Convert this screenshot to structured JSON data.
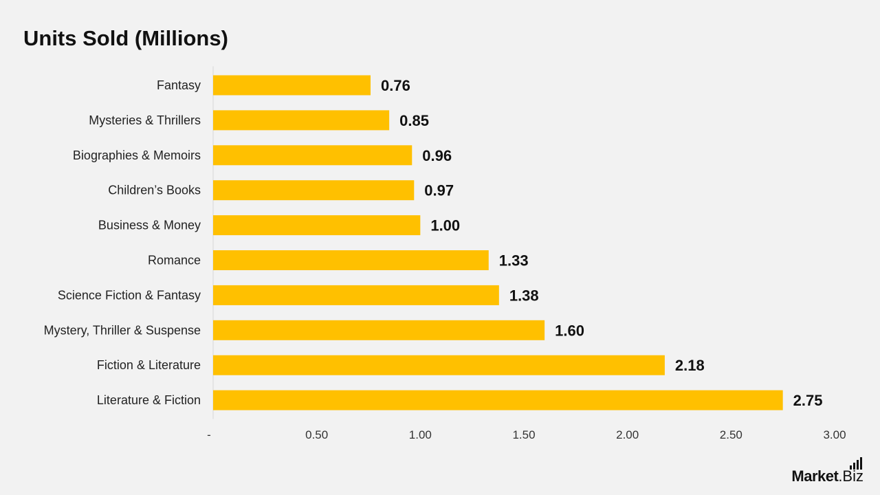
{
  "chart_data": {
    "type": "bar",
    "orientation": "horizontal",
    "title": "Units Sold (Millions)",
    "categories": [
      "Fantasy",
      "Mysteries & Thrillers",
      "Biographies & Memoirs",
      "Children’s Books",
      "Business & Money",
      "Romance",
      "Science Fiction & Fantasy",
      "Mystery, Thriller & Suspense",
      "Fiction & Literature",
      "Literature & Fiction"
    ],
    "values": [
      0.76,
      0.85,
      0.96,
      0.97,
      1.0,
      1.33,
      1.38,
      1.6,
      2.18,
      2.75
    ],
    "value_labels": [
      "0.76",
      "0.85",
      "0.96",
      "0.97",
      "1.00",
      "1.33",
      "1.38",
      "1.60",
      "2.18",
      "2.75"
    ],
    "xlim": [
      0,
      3
    ],
    "xticks": [
      0,
      0.5,
      1.0,
      1.5,
      2.0,
      2.5,
      3.0
    ],
    "xtick_labels": [
      "-",
      "0.50",
      "1.00",
      "1.50",
      "2.00",
      "2.50",
      "3.00"
    ],
    "grid": false,
    "legend": "none",
    "bar_color": "#FFC000"
  },
  "brand": {
    "main": "Market",
    "sub": ".Biz"
  }
}
